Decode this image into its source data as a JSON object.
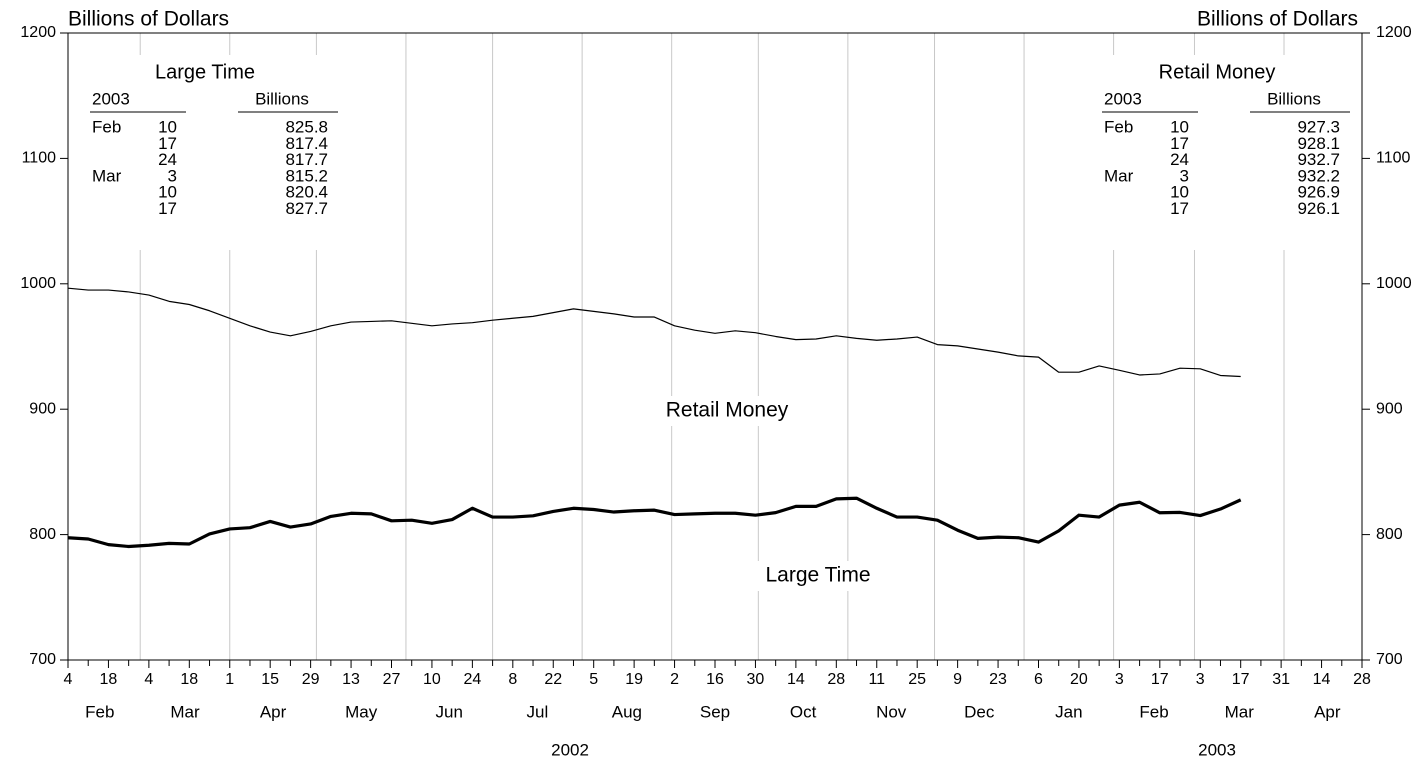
{
  "chart_data": {
    "type": "line",
    "ylabel": "Billions of Dollars",
    "y2label": "Billions of Dollars",
    "x": [
      "2002-02-04",
      "2002-02-11",
      "2002-02-18",
      "2002-02-25",
      "2002-03-04",
      "2002-03-11",
      "2002-03-18",
      "2002-03-25",
      "2002-04-01",
      "2002-04-08",
      "2002-04-15",
      "2002-04-22",
      "2002-04-29",
      "2002-05-06",
      "2002-05-13",
      "2002-05-20",
      "2002-05-27",
      "2002-06-03",
      "2002-06-10",
      "2002-06-17",
      "2002-06-24",
      "2002-07-01",
      "2002-07-08",
      "2002-07-15",
      "2002-07-22",
      "2002-07-29",
      "2002-08-05",
      "2002-08-12",
      "2002-08-19",
      "2002-08-26",
      "2002-09-02",
      "2002-09-09",
      "2002-09-16",
      "2002-09-23",
      "2002-09-30",
      "2002-10-07",
      "2002-10-14",
      "2002-10-21",
      "2002-10-28",
      "2002-11-04",
      "2002-11-11",
      "2002-11-18",
      "2002-11-25",
      "2002-12-02",
      "2002-12-09",
      "2002-12-16",
      "2002-12-23",
      "2002-12-30",
      "2003-01-06",
      "2003-01-13",
      "2003-01-20",
      "2003-01-27",
      "2003-02-03",
      "2003-02-10",
      "2003-02-17",
      "2003-02-24",
      "2003-03-03",
      "2003-03-10",
      "2003-03-17"
    ],
    "series": [
      {
        "name": "Retail Money",
        "color": "#000000",
        "width": 1.2,
        "values": [
          996.5,
          995.0,
          995.0,
          993.5,
          991.0,
          986.0,
          983.5,
          978.5,
          972.5,
          966.5,
          961.5,
          958.5,
          962.0,
          966.5,
          969.5,
          970.0,
          970.5,
          968.5,
          966.5,
          968.0,
          969.0,
          971.0,
          972.5,
          974.0,
          977.0,
          980.0,
          978.0,
          976.0,
          973.5,
          973.5,
          966.5,
          963.0,
          960.5,
          962.5,
          961.0,
          958.0,
          955.5,
          956.0,
          958.5,
          956.5,
          955.0,
          956.0,
          957.5,
          951.5,
          950.5,
          948.0,
          945.5,
          942.5,
          941.5,
          929.5,
          929.5,
          934.5,
          931.0,
          927.3,
          928.1,
          932.7,
          932.2,
          926.9,
          926.1
        ]
      },
      {
        "name": "Large Time",
        "color": "#000000",
        "width": 3.2,
        "values": [
          797.5,
          796.5,
          792.0,
          790.5,
          791.5,
          793.0,
          792.5,
          800.5,
          804.5,
          805.5,
          810.5,
          806.0,
          808.5,
          814.5,
          817.0,
          816.5,
          811.0,
          811.5,
          809.0,
          812.0,
          821.0,
          814.0,
          814.0,
          815.0,
          818.5,
          821.0,
          820.0,
          818.0,
          819.0,
          819.5,
          816.0,
          816.5,
          817.0,
          817.0,
          815.5,
          817.5,
          822.5,
          822.5,
          828.5,
          829.0,
          821.0,
          814.0,
          814.0,
          811.5,
          803.5,
          797.0,
          798.0,
          797.5,
          794.0,
          803.0,
          815.5,
          814.0,
          823.5,
          825.8,
          817.4,
          817.7,
          815.2,
          820.4,
          827.7
        ]
      }
    ],
    "xlim": [
      "2002-02-04",
      "2003-04-28"
    ],
    "xticks": [
      {
        "value": "2002-02-04",
        "label": "4"
      },
      {
        "value": "2002-02-18",
        "label": "18"
      },
      {
        "value": "2002-03-04",
        "label": "4"
      },
      {
        "value": "2002-03-18",
        "label": "18"
      },
      {
        "value": "2002-04-01",
        "label": "1"
      },
      {
        "value": "2002-04-15",
        "label": "15"
      },
      {
        "value": "2002-04-29",
        "label": "29"
      },
      {
        "value": "2002-05-13",
        "label": "13"
      },
      {
        "value": "2002-05-27",
        "label": "27"
      },
      {
        "value": "2002-06-10",
        "label": "10"
      },
      {
        "value": "2002-06-24",
        "label": "24"
      },
      {
        "value": "2002-07-08",
        "label": "8"
      },
      {
        "value": "2002-07-22",
        "label": "22"
      },
      {
        "value": "2002-08-05",
        "label": "5"
      },
      {
        "value": "2002-08-19",
        "label": "19"
      },
      {
        "value": "2002-09-02",
        "label": "2"
      },
      {
        "value": "2002-09-16",
        "label": "16"
      },
      {
        "value": "2002-09-30",
        "label": "30"
      },
      {
        "value": "2002-10-14",
        "label": "14"
      },
      {
        "value": "2002-10-28",
        "label": "28"
      },
      {
        "value": "2002-11-11",
        "label": "11"
      },
      {
        "value": "2002-11-25",
        "label": "25"
      },
      {
        "value": "2002-12-09",
        "label": "9"
      },
      {
        "value": "2002-12-23",
        "label": "23"
      },
      {
        "value": "2003-01-06",
        "label": "6"
      },
      {
        "value": "2003-01-20",
        "label": "20"
      },
      {
        "value": "2003-02-03",
        "label": "3"
      },
      {
        "value": "2003-02-17",
        "label": "17"
      },
      {
        "value": "2003-03-03",
        "label": "3"
      },
      {
        "value": "2003-03-17",
        "label": "17"
      },
      {
        "value": "2003-03-31",
        "label": "31"
      },
      {
        "value": "2003-04-14",
        "label": "14"
      },
      {
        "value": "2003-04-28",
        "label": "28"
      }
    ],
    "xminorticks": [
      "2002-02-11",
      "2002-02-25",
      "2002-03-11",
      "2002-03-25",
      "2002-04-08",
      "2002-04-22",
      "2002-05-06",
      "2002-05-20",
      "2002-06-03",
      "2002-06-17",
      "2002-07-01",
      "2002-07-15",
      "2002-07-29",
      "2002-08-12",
      "2002-08-26",
      "2002-09-09",
      "2002-09-23",
      "2002-10-07",
      "2002-10-21",
      "2002-11-04",
      "2002-11-18",
      "2002-12-02",
      "2002-12-16",
      "2002-12-30",
      "2003-01-13",
      "2003-01-27",
      "2003-02-10",
      "2003-02-24",
      "2003-03-10",
      "2003-03-24",
      "2003-04-07",
      "2003-04-21"
    ],
    "x_months": [
      {
        "value": "2002-02",
        "label": "Feb"
      },
      {
        "value": "2002-03",
        "label": "Mar"
      },
      {
        "value": "2002-04",
        "label": "Apr"
      },
      {
        "value": "2002-05",
        "label": "May"
      },
      {
        "value": "2002-06",
        "label": "Jun"
      },
      {
        "value": "2002-07",
        "label": "Jul"
      },
      {
        "value": "2002-08",
        "label": "Aug"
      },
      {
        "value": "2002-09",
        "label": "Sep"
      },
      {
        "value": "2002-10",
        "label": "Oct"
      },
      {
        "value": "2002-11",
        "label": "Nov"
      },
      {
        "value": "2002-12",
        "label": "Dec"
      },
      {
        "value": "2003-01",
        "label": "Jan"
      },
      {
        "value": "2003-02",
        "label": "Feb"
      },
      {
        "value": "2003-03",
        "label": "Mar"
      },
      {
        "value": "2003-04",
        "label": "Apr"
      }
    ],
    "x_years": [
      2002,
      2003
    ],
    "ylim": [
      700,
      1200
    ],
    "yticks": [
      700,
      800,
      900,
      1000,
      1100,
      1200
    ],
    "y2lim": [
      700,
      1200
    ],
    "y2ticks": [
      700,
      800,
      900,
      1000,
      1100,
      1200
    ],
    "grid": true,
    "tables": [
      {
        "title": "Large Time",
        "year": 2003,
        "unit": "Billions",
        "rows": [
          {
            "month": "Feb",
            "day": 10,
            "value": 825.8
          },
          {
            "day": 17,
            "value": 817.4
          },
          {
            "day": 24,
            "value": 817.7
          },
          {
            "month": "Mar",
            "day": 3,
            "value": 815.2
          },
          {
            "day": 10,
            "value": 820.4
          },
          {
            "day": 17,
            "value": 827.7
          }
        ]
      },
      {
        "title": "Retail Money",
        "year": 2003,
        "unit": "Billions",
        "rows": [
          {
            "month": "Feb",
            "day": 10,
            "value": 927.3
          },
          {
            "day": 17,
            "value": 928.1
          },
          {
            "day": 24,
            "value": 932.7
          },
          {
            "month": "Mar",
            "day": 3,
            "value": 932.2
          },
          {
            "day": 10,
            "value": 926.9
          },
          {
            "day": 17,
            "value": 926.1
          }
        ]
      }
    ]
  }
}
